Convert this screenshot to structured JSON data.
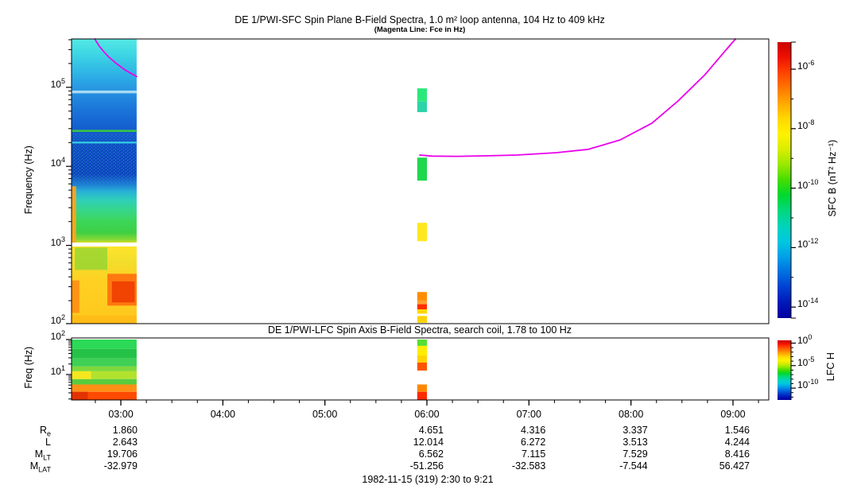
{
  "colors": {
    "background": "#ffffff",
    "frame": "#000000",
    "fce_line": "#ea00ea",
    "rainbow": [
      "#cc0000",
      "#ee1100",
      "#ff4400",
      "#ff7700",
      "#ffaa00",
      "#ffd900",
      "#fff200",
      "#d8ee00",
      "#99e800",
      "#44dd00",
      "#00d832",
      "#00d87e",
      "#00d4bb",
      "#00c8e0",
      "#00a0e8",
      "#0070e0",
      "#0040d0",
      "#0018b8",
      "#0000a0"
    ]
  },
  "chart_data": [
    {
      "panel": "SFC",
      "type": "heatmap",
      "title": "DE 1/PWI-SFC  Spin Plane B-Field Spectra, 1.0 m² loop antenna, 104 Hz to 409 kHz",
      "subtitle": "(Magenta Line: Fce in Hz)",
      "ylabel": "Frequency (Hz)",
      "yscale": "log",
      "ylim_hz": [
        104,
        409000
      ],
      "ytick_exponents": [
        2,
        3,
        4,
        5
      ],
      "colorbar": {
        "label": "SFC B (nT² Hz⁻¹)",
        "tick_exponents": [
          -6,
          -8,
          -10,
          -12,
          -14
        ],
        "minor_tick_exponents": [
          -7,
          -9,
          -11,
          -13
        ],
        "range_exponents": [
          -5.1,
          -14.4
        ]
      },
      "fce_line_t_hz": [
        [
          [
            2.745,
            409000
          ],
          [
            2.76,
            380000
          ],
          [
            2.79,
            330000
          ],
          [
            2.83,
            285000
          ],
          [
            2.88,
            243000
          ],
          [
            2.95,
            203000
          ],
          [
            3.04,
            166000
          ],
          [
            3.1,
            150000
          ],
          [
            3.156,
            137000
          ]
        ],
        [
          [
            5.93,
            13900
          ],
          [
            6.05,
            13500
          ],
          [
            6.3,
            13400
          ],
          [
            6.6,
            13600
          ],
          [
            6.881,
            13900
          ],
          [
            7.27,
            14900
          ],
          [
            7.582,
            16400
          ],
          [
            7.894,
            21600
          ],
          [
            8.205,
            35200
          ],
          [
            8.463,
            67500
          ],
          [
            8.728,
            146000
          ],
          [
            8.907,
            273000
          ],
          [
            9.024,
            409000
          ]
        ]
      ],
      "data_region": {
        "t_hours": [
          2.517,
          3.155
        ],
        "gradient": [
          [
            0,
            "#55e8e4"
          ],
          [
            0.05,
            "#3ed8e4"
          ],
          [
            0.12,
            "#2fb4e6"
          ],
          [
            0.18,
            "#2694e2"
          ],
          [
            0.24,
            "#1c78da"
          ],
          [
            0.3,
            "#1562d2"
          ],
          [
            0.37,
            "#0f4cc6"
          ],
          [
            0.475,
            "#0d44c0"
          ],
          [
            0.505,
            "#1a72d2"
          ],
          [
            0.535,
            "#27b0d6"
          ],
          [
            0.565,
            "#2fceba"
          ],
          [
            0.6,
            "#36d68c"
          ],
          [
            0.64,
            "#3cd65a"
          ],
          [
            0.68,
            "#3ecf44"
          ],
          [
            0.705,
            "#86d834"
          ],
          [
            0.716,
            "#dce026"
          ],
          [
            0.722,
            "#ffd216"
          ],
          [
            0.73,
            "#ffe42a"
          ],
          [
            0.78,
            "#f2de2c"
          ],
          [
            0.85,
            "#ffd022"
          ],
          [
            1,
            "#ffc81c"
          ]
        ],
        "white_gap_hz": [
          970,
          1085
        ],
        "overlays": [
          {
            "f": [
              84000,
              91000
            ],
            "x": [
              0,
              1
            ],
            "color": "#bfe9f6",
            "opacity": 0.85
          },
          {
            "f": [
              27200,
              29000
            ],
            "x": [
              0,
              1
            ],
            "color": "#3cca3c",
            "opacity": 0.9
          },
          {
            "f": [
              19500,
              20500
            ],
            "x": [
              0,
              1
            ],
            "color": "#38d8e8",
            "opacity": 0.95
          },
          {
            "f": [
              1085,
              5600
            ],
            "x": [
              0,
              0.07
            ],
            "color": "#ffa51e",
            "opacity": 0.9
          },
          {
            "f": [
              490,
              940
            ],
            "x": [
              0.05,
              0.55
            ],
            "color": "#84d433",
            "opacity": 0.7
          },
          {
            "f": [
              173,
              437
            ],
            "x": [
              0.55,
              1
            ],
            "color": "#ff6f0e",
            "opacity": 0.9
          },
          {
            "f": [
              190,
              350
            ],
            "x": [
              0.62,
              0.97
            ],
            "color": "#ef3a00",
            "opacity": 0.85
          },
          {
            "f": [
              140,
              360
            ],
            "x": [
              0,
              0.12
            ],
            "color": "#ff8912",
            "opacity": 0.85
          },
          {
            "f": [
              104,
              130
            ],
            "x": [
              0,
              1
            ],
            "color": "#ffb414",
            "opacity": 0.6
          }
        ],
        "speckle_hz": [
          6000,
          26000
        ],
        "speckle_colors": [
          "#36d85e",
          "#2fd0cc",
          "#1a88e0"
        ]
      },
      "burst": {
        "t_hours": [
          5.905,
          6.0
        ],
        "blocks": [
          {
            "f": [
              66000,
              97000
            ],
            "color": "#2ce87a"
          },
          {
            "f": [
              48500,
              66000
            ],
            "color": "#2cd4aa"
          },
          {
            "f": [
              6600,
              12900
            ],
            "color": "#1fd84d"
          },
          {
            "f": [
              1130,
              1930
            ],
            "color": "#ffe81e"
          },
          {
            "f": [
              200,
              257
            ],
            "color": "#ff8c00"
          },
          {
            "f": [
              180,
              200
            ],
            "color": "#ffa030"
          },
          {
            "f": [
              155,
              180
            ],
            "color": "#ff2e00"
          },
          {
            "f": [
              137,
              155
            ],
            "color": "#ffd800"
          },
          {
            "f": [
              105,
              128
            ],
            "color": "#ffd300"
          }
        ]
      }
    },
    {
      "panel": "LFC",
      "type": "heatmap",
      "title": "DE 1/PWI-LFC  Spin Axis B-Field Spectra, search coil, 1.78 to 100 Hz",
      "ylabel": "Freq (Hz)",
      "yscale": "log",
      "ylim_hz": [
        1.78,
        100
      ],
      "ytick_exponents": [
        1,
        2
      ],
      "colorbar": {
        "label": "LFC H",
        "tick_exponents": [
          0,
          -5,
          -10
        ],
        "minor_tick_exponents": [
          -1,
          -2,
          -3,
          -4,
          -6,
          -7,
          -8,
          -9,
          -11,
          -12
        ]
      },
      "data_region": {
        "t_hours": [
          2.517,
          3.155
        ],
        "bands": [
          {
            "f": [
              54,
              100
            ],
            "color": "#2bd956"
          },
          {
            "f": [
              29,
              54
            ],
            "color": "#24c247"
          },
          {
            "f": [
              17,
              29
            ],
            "color": "#3fd055"
          },
          {
            "f": [
              12.4,
              17
            ],
            "color": "#7ed83c"
          },
          {
            "f": [
              7.4,
              12.4
            ],
            "color": "#b2e22e"
          },
          {
            "f": [
              5.2,
              7.4
            ],
            "color": "#59cc3e"
          },
          {
            "f": [
              3.2,
              5.2
            ],
            "color": "#ff9016"
          },
          {
            "f": [
              1.87,
              3.2
            ],
            "color": "#ff4a00"
          }
        ],
        "overlays": [
          {
            "f": [
              7.4,
              12.4
            ],
            "x": [
              0,
              0.3
            ],
            "color": "#ffe71c",
            "opacity": 0.85
          },
          {
            "f": [
              1.87,
              3.2
            ],
            "x": [
              0,
              0.25
            ],
            "color": "#e03000",
            "opacity": 0.9
          }
        ]
      },
      "burst": {
        "t_hours": [
          5.905,
          6.0
        ],
        "blocks": [
          {
            "f": [
              66,
              100
            ],
            "color": "#55e030"
          },
          {
            "f": [
              35,
              66
            ],
            "color": "#ffee00"
          },
          {
            "f": [
              22,
              35
            ],
            "color": "#ffd400"
          },
          {
            "f": [
              13,
              22
            ],
            "color": "#ff5500"
          },
          {
            "f": [
              3.2,
              5.2
            ],
            "color": "#ff8800"
          },
          {
            "f": [
              1.87,
              3.2
            ],
            "color": "#ff2a00"
          }
        ]
      }
    }
  ],
  "time_axis": {
    "start_label": "2:30",
    "end_label": "9:21",
    "t_range_hours": [
      2.517,
      9.35
    ],
    "major_ticks": [
      {
        "t": 3,
        "label": "03:00"
      },
      {
        "t": 4,
        "label": "04:00"
      },
      {
        "t": 5,
        "label": "05:00"
      },
      {
        "t": 6,
        "label": "06:00"
      },
      {
        "t": 7,
        "label": "07:00"
      },
      {
        "t": 8,
        "label": "08:00"
      },
      {
        "t": 9,
        "label": "09:00"
      }
    ],
    "minor_step_hours": 0.25
  },
  "ephemeris": {
    "row_labels": [
      {
        "main": "R",
        "sub": "e"
      },
      {
        "main": "L",
        "sub": ""
      },
      {
        "main": "M",
        "sub": "LT"
      },
      {
        "main": "M",
        "sub": "LAT"
      }
    ],
    "columns": [
      {
        "t": 3,
        "values": [
          "1.860",
          "2.643",
          "19.706",
          "-32.979"
        ]
      },
      {
        "t": 4,
        "values": [
          "",
          "",
          "",
          ""
        ]
      },
      {
        "t": 5,
        "values": [
          "",
          "",
          "",
          ""
        ]
      },
      {
        "t": 6,
        "values": [
          "4.651",
          "12.014",
          "6.562",
          "-51.256"
        ]
      },
      {
        "t": 7,
        "values": [
          "4.316",
          "6.272",
          "7.115",
          "-32.583"
        ]
      },
      {
        "t": 8,
        "values": [
          "3.337",
          "3.513",
          "7.529",
          "-7.544"
        ]
      },
      {
        "t": 9,
        "values": [
          "1.546",
          "4.244",
          "8.416",
          "56.427"
        ]
      }
    ]
  },
  "footer": {
    "date_range": "1982-11-15 (319) 2:30 to 9:21"
  }
}
